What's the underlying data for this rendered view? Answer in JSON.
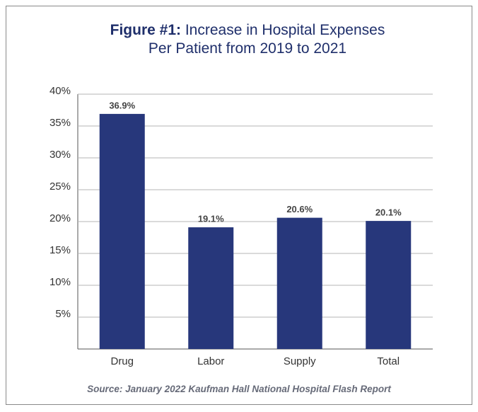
{
  "chart_data": {
    "type": "bar",
    "title_label": "Figure #1:",
    "title": "Increase in Hospital Expenses Per Patient from 2019 to 2021",
    "categories": [
      "Drug",
      "Labor",
      "Supply",
      "Total"
    ],
    "values": [
      36.9,
      19.1,
      20.6,
      20.1
    ],
    "value_labels": [
      "36.9%",
      "19.1%",
      "20.6%",
      "20.1%"
    ],
    "color": "#27377b",
    "ylim": [
      0,
      40
    ],
    "yticks": [
      {
        "value": 5,
        "label": "5%"
      },
      {
        "value": 10,
        "label": "10%"
      },
      {
        "value": 15,
        "label": "15%"
      },
      {
        "value": 20,
        "label": "20%"
      },
      {
        "value": 25,
        "label": "25%"
      },
      {
        "value": 30,
        "label": "30%"
      },
      {
        "value": 35,
        "label": "35%"
      },
      {
        "value": 40,
        "label": "40%"
      }
    ],
    "grid": true,
    "source": "Source: January 2022 Kaufman Hall National Hospital Flash Report"
  }
}
